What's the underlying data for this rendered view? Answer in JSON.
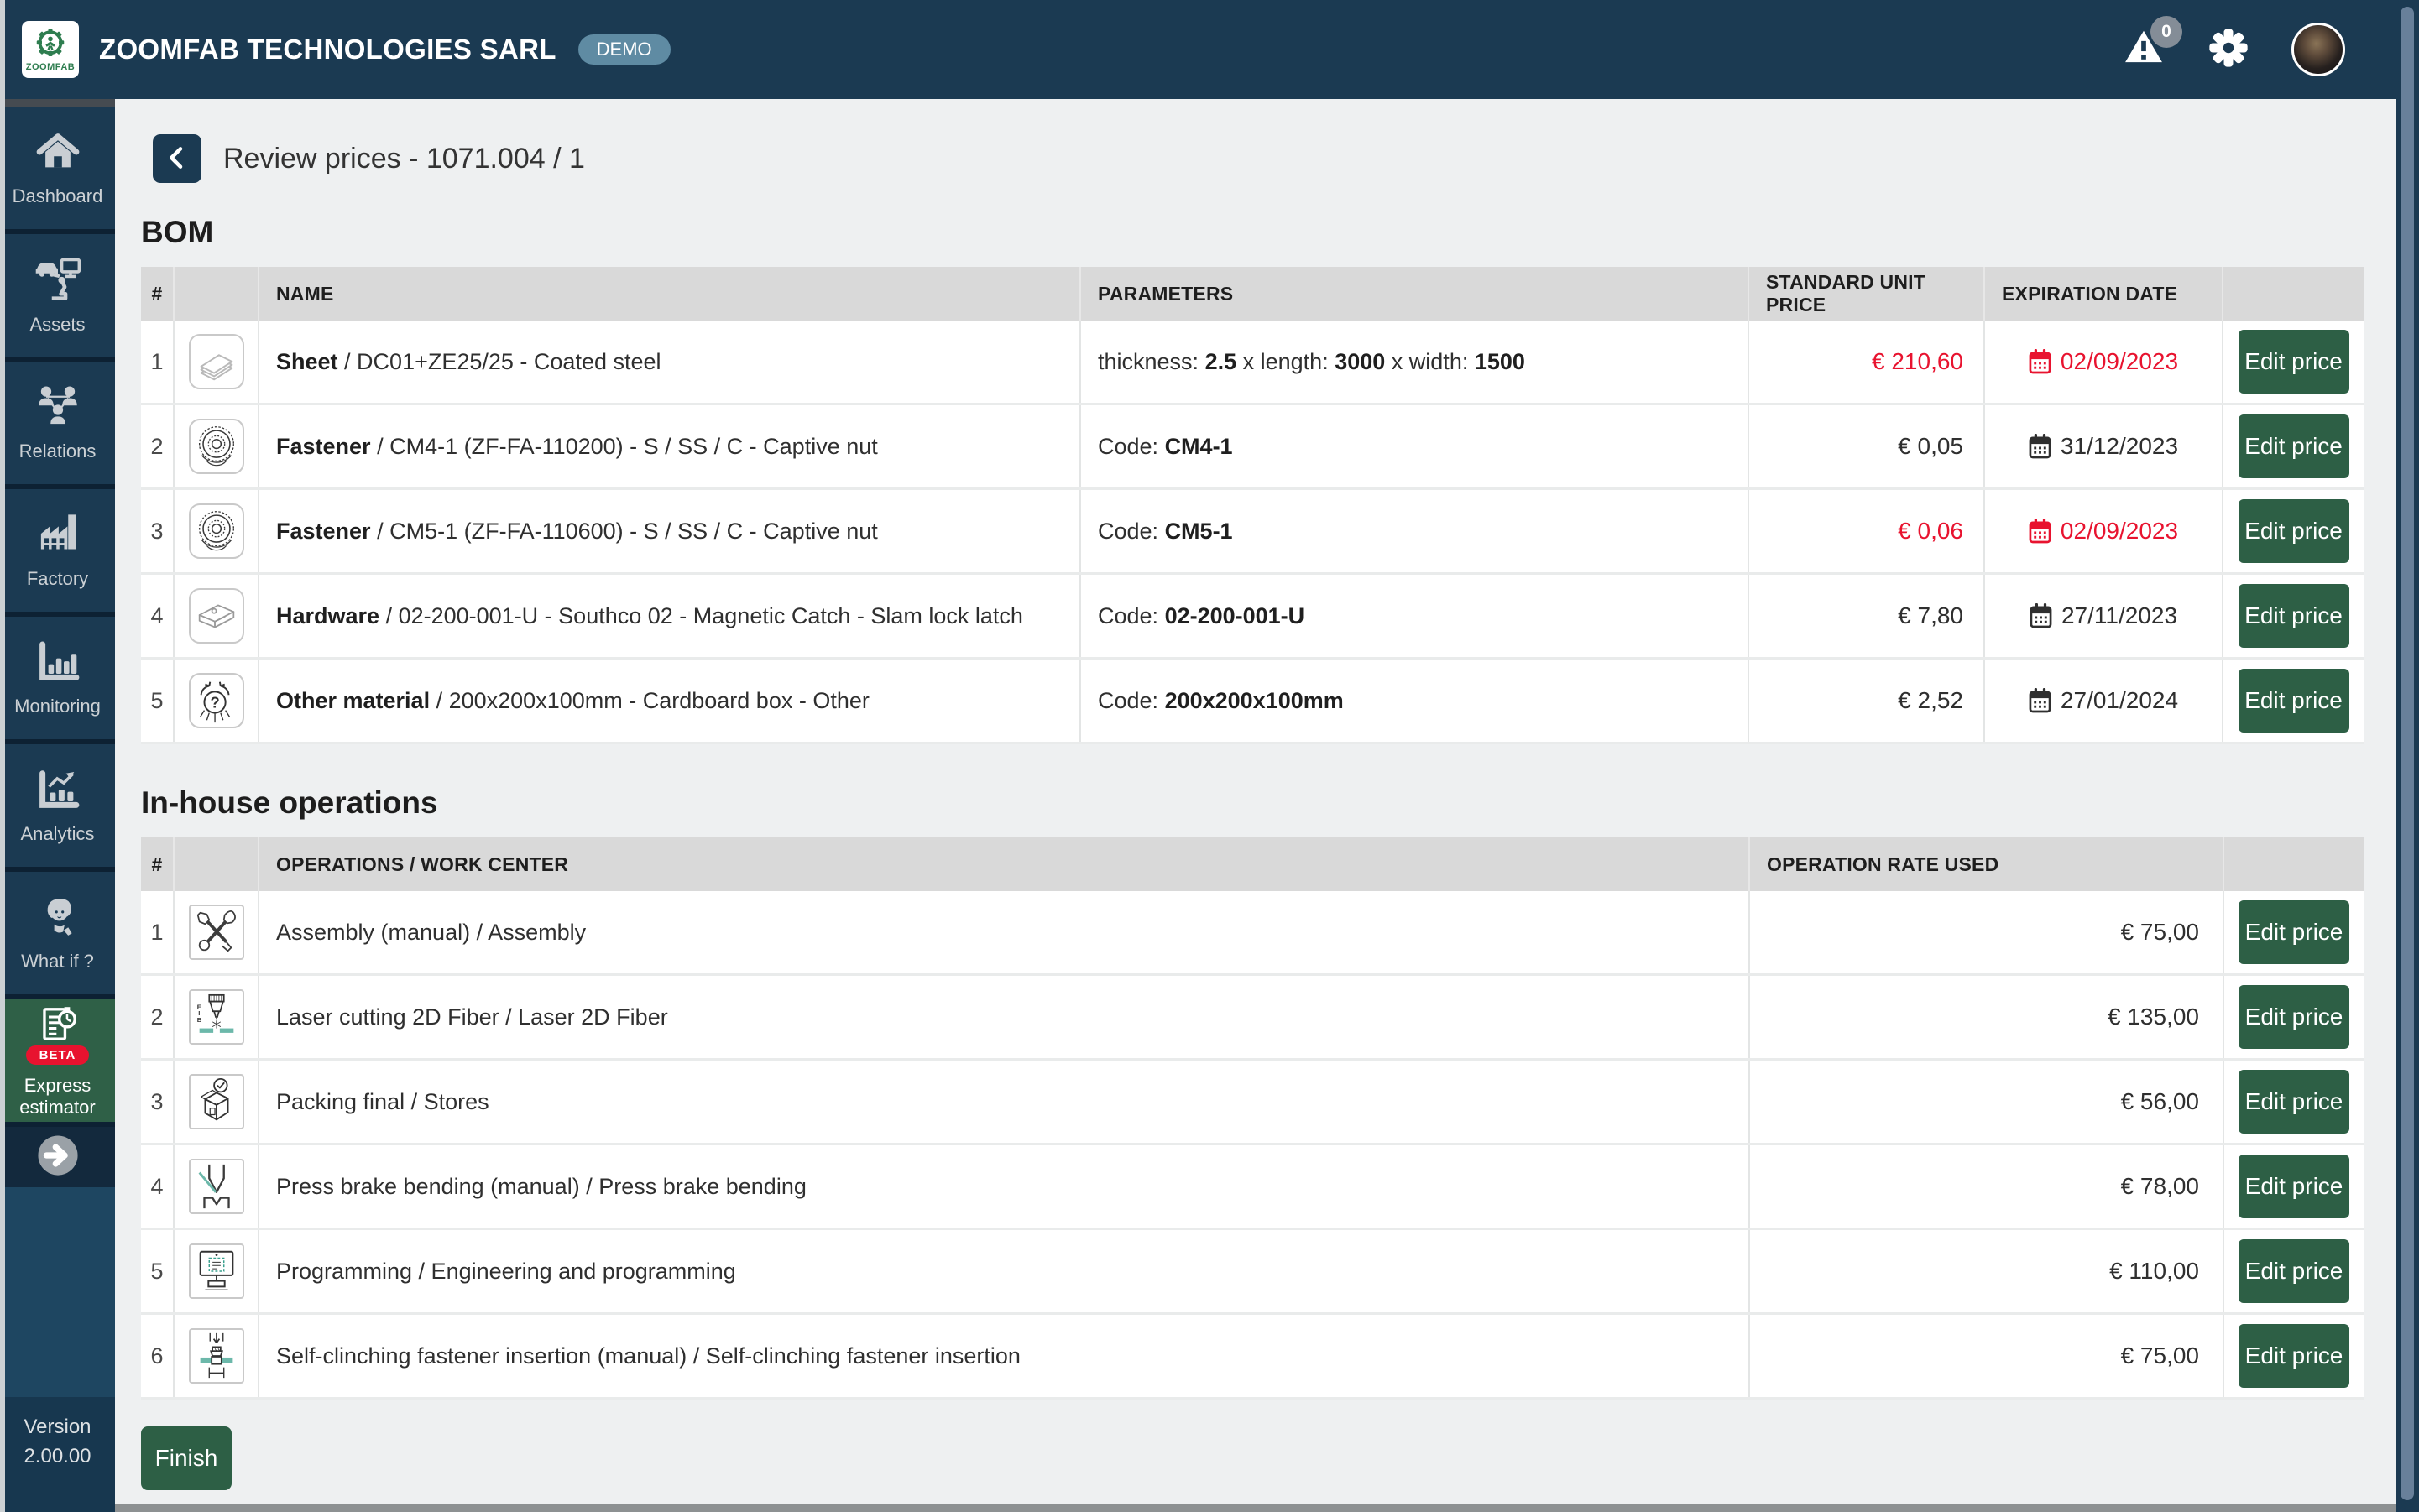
{
  "topbar": {
    "logo_text": "ZOOMFAB",
    "company": "ZOOMFAB TECHNOLOGIES SARL",
    "demo_badge": "DEMO",
    "notification_count": "0",
    "icons": [
      "zoomfab-logo-icon",
      "warning-triangle-icon",
      "gear-icon",
      "user-avatar"
    ]
  },
  "sidebar": {
    "items": [
      {
        "label": "Dashboard",
        "icon": "home-icon"
      },
      {
        "label": "Assets",
        "icon": "assets-icon"
      },
      {
        "label": "Relations",
        "icon": "relations-icon"
      },
      {
        "label": "Factory",
        "icon": "factory-icon"
      },
      {
        "label": "Monitoring",
        "icon": "monitoring-icon"
      },
      {
        "label": "Analytics",
        "icon": "analytics-icon"
      },
      {
        "label": "What if ?",
        "icon": "what-if-icon"
      },
      {
        "label": "Express estimator",
        "icon": "express-estimator-icon",
        "badge": "BETA",
        "accent": true
      }
    ],
    "collapse_icon": "arrow-right-icon",
    "version_label": "Version",
    "version_number": "2.00.00"
  },
  "page": {
    "title": "Review prices - 1071.004 / 1",
    "back_icon": "chevron-left-icon"
  },
  "bom": {
    "heading": "BOM",
    "columns": [
      "#",
      "",
      "NAME",
      "PARAMETERS",
      "STANDARD UNIT PRICE",
      "EXPIRATION DATE",
      ""
    ],
    "rows": [
      {
        "num": "1",
        "icon": "sheet-icon",
        "name_bold": "Sheet",
        "name_rest": " / DC01+ZE25/25 - Coated steel",
        "params": [
          {
            "text": "thickness: "
          },
          {
            "text": "2.5",
            "bold": true
          },
          {
            "text": " x length: "
          },
          {
            "text": "3000",
            "bold": true
          },
          {
            "text": " x width: "
          },
          {
            "text": "1500",
            "bold": true
          }
        ],
        "price": "€ 210,60",
        "price_alert": true,
        "date": "02/09/2023",
        "date_alert": true,
        "action": "Edit price"
      },
      {
        "num": "2",
        "icon": "captive-nut-icon",
        "name_bold": "Fastener",
        "name_rest": " / CM4-1 (ZF-FA-110200) - S / SS / C - Captive nut",
        "params": [
          {
            "text": "Code: "
          },
          {
            "text": "CM4-1",
            "bold": true
          }
        ],
        "price": "€ 0,05",
        "price_alert": false,
        "date": "31/12/2023",
        "date_alert": false,
        "action": "Edit price"
      },
      {
        "num": "3",
        "icon": "captive-nut-icon",
        "name_bold": "Fastener",
        "name_rest": " / CM5-1 (ZF-FA-110600) - S / SS / C - Captive nut",
        "params": [
          {
            "text": "Code: "
          },
          {
            "text": "CM5-1",
            "bold": true
          }
        ],
        "price": "€ 0,06",
        "price_alert": true,
        "date": "02/09/2023",
        "date_alert": true,
        "action": "Edit price"
      },
      {
        "num": "4",
        "icon": "hardware-icon",
        "name_bold": "Hardware",
        "name_rest": " / 02-200-001-U - Southco 02 - Magnetic Catch - Slam lock latch",
        "params": [
          {
            "text": "Code: "
          },
          {
            "text": "02-200-001-U",
            "bold": true
          }
        ],
        "price": "€ 7,80",
        "price_alert": false,
        "date": "27/11/2023",
        "date_alert": false,
        "action": "Edit price"
      },
      {
        "num": "5",
        "icon": "other-material-icon",
        "name_bold": "Other material",
        "name_rest": " / 200x200x100mm - Cardboard box - Other",
        "params": [
          {
            "text": "Code: "
          },
          {
            "text": "200x200x100mm",
            "bold": true
          }
        ],
        "price": "€ 2,52",
        "price_alert": false,
        "date": "27/01/2024",
        "date_alert": false,
        "action": "Edit price"
      }
    ]
  },
  "operations": {
    "heading": "In-house operations",
    "columns": [
      "#",
      "",
      "OPERATIONS / WORK CENTER",
      "OPERATION RATE USED",
      ""
    ],
    "rows": [
      {
        "num": "1",
        "icon": "assembly-icon",
        "name": "Assembly (manual) / Assembly",
        "rate": "€ 75,00",
        "action": "Edit price"
      },
      {
        "num": "2",
        "icon": "laser-cutting-icon",
        "name": "Laser cutting 2D Fiber / Laser 2D Fiber",
        "rate": "€ 135,00",
        "action": "Edit price"
      },
      {
        "num": "3",
        "icon": "packing-icon",
        "name": "Packing final / Stores",
        "rate": "€ 56,00",
        "action": "Edit price"
      },
      {
        "num": "4",
        "icon": "press-brake-icon",
        "name": "Press brake bending (manual) / Press brake bending",
        "rate": "€ 78,00",
        "action": "Edit price"
      },
      {
        "num": "5",
        "icon": "programming-icon",
        "name": "Programming / Engineering and programming",
        "rate": "€ 110,00",
        "action": "Edit price"
      },
      {
        "num": "6",
        "icon": "self-clinching-icon",
        "name": "Self-clinching fastener insertion (manual) / Self-clinching fastener insertion",
        "rate": "€ 75,00",
        "action": "Edit price"
      }
    ]
  },
  "footer": {
    "finish_label": "Finish"
  },
  "misc_icons": [
    "calendar-icon"
  ],
  "colors": {
    "navy": "#1b3a52",
    "accent_green": "#2d5f45",
    "express_green": "#2f6047",
    "alert_red": "#e8132f",
    "demo_badge": "#5f8ba3",
    "table_header": "#d9d9d9",
    "content_bg": "#eef0f1"
  }
}
